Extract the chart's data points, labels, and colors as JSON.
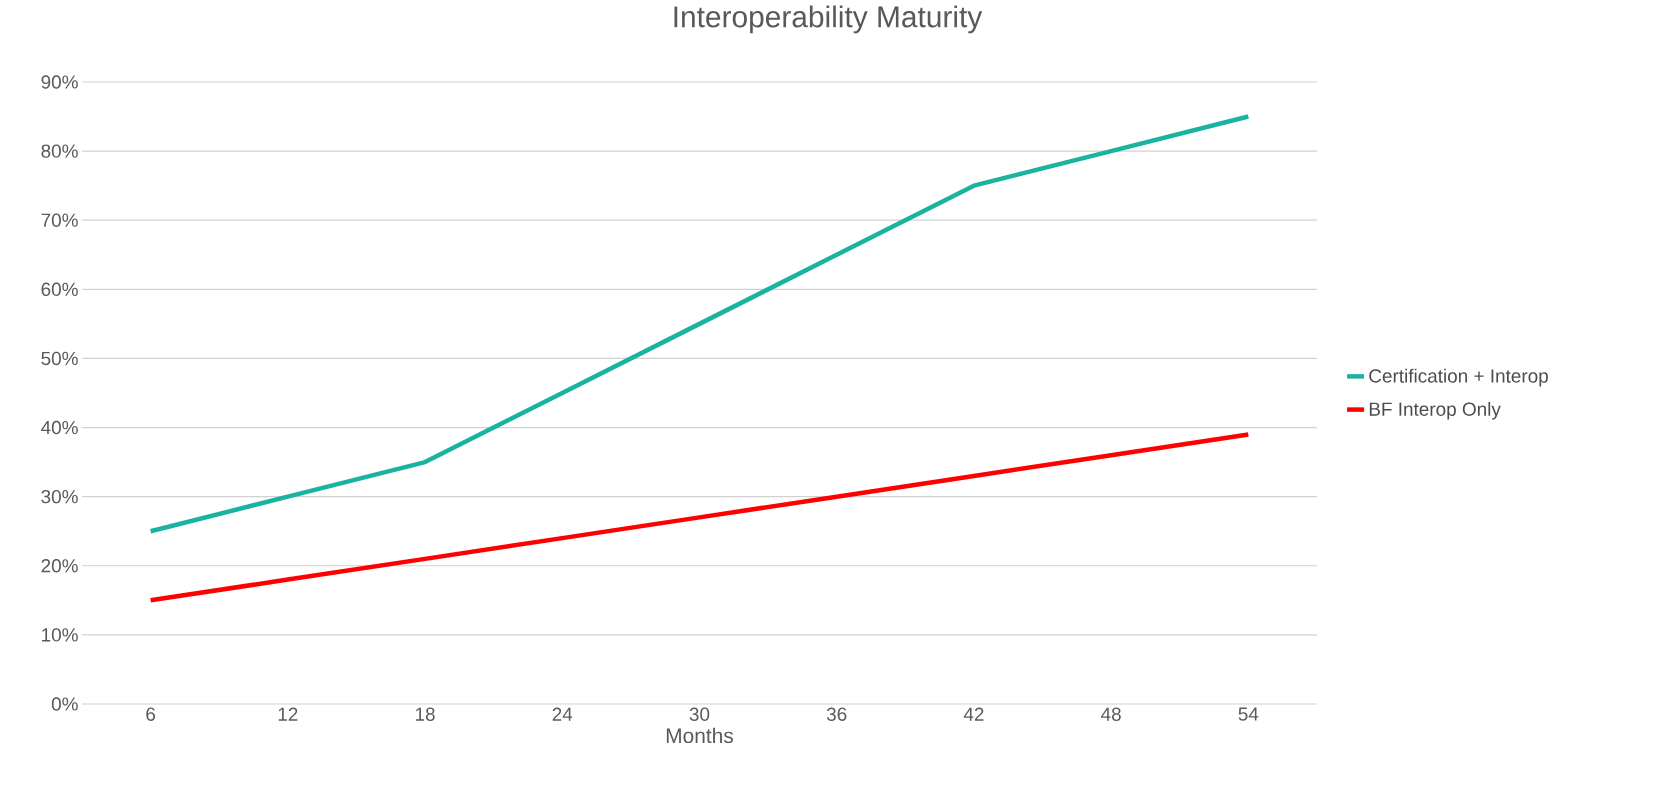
{
  "chart_data": {
    "type": "line",
    "title": "Interoperability Maturity",
    "xlabel": "Months",
    "categories": [
      "6",
      "12",
      "18",
      "24",
      "30",
      "36",
      "42",
      "48",
      "54"
    ],
    "series": [
      {
        "name": "Certification + Interop",
        "color": "#1ab39f",
        "values": [
          25,
          30,
          35,
          45,
          55,
          65,
          75,
          80,
          85
        ]
      },
      {
        "name": "BF Interop Only",
        "color": "#ff0000",
        "values": [
          15,
          18,
          21,
          24,
          27,
          30,
          33,
          36,
          39
        ]
      }
    ],
    "ylim": [
      0,
      90
    ],
    "yticks": [
      {
        "value": 0,
        "label": "0%"
      },
      {
        "value": 10,
        "label": "10%"
      },
      {
        "value": 20,
        "label": "20%"
      },
      {
        "value": 30,
        "label": "30%"
      },
      {
        "value": 40,
        "label": "40%"
      },
      {
        "value": 50,
        "label": "50%"
      },
      {
        "value": 60,
        "label": "60%"
      },
      {
        "value": 70,
        "label": "70%"
      },
      {
        "value": 80,
        "label": "80%"
      },
      {
        "value": 90,
        "label": "90%"
      }
    ],
    "grid": "y",
    "legend": "right",
    "marker": "none",
    "line_style": "solid"
  }
}
